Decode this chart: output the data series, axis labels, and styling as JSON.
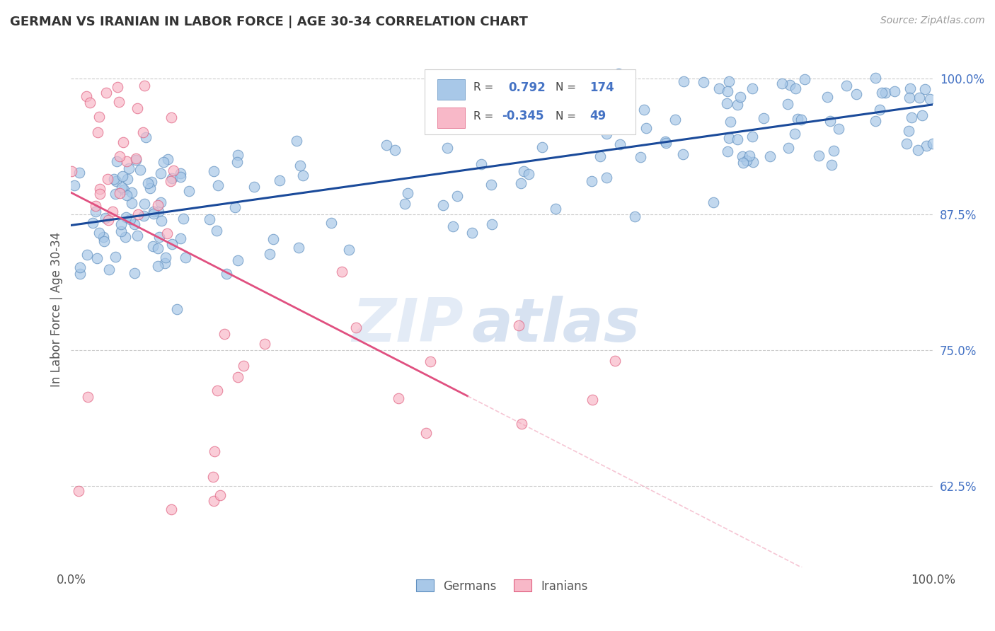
{
  "title": "GERMAN VS IRANIAN IN LABOR FORCE | AGE 30-34 CORRELATION CHART",
  "source": "Source: ZipAtlas.com",
  "ylabel": "In Labor Force | Age 30-34",
  "ytick_labels": [
    "62.5%",
    "75.0%",
    "87.5%",
    "100.0%"
  ],
  "ytick_values": [
    0.625,
    0.75,
    0.875,
    1.0
  ],
  "xrange": [
    0.0,
    1.0
  ],
  "yrange": [
    0.55,
    1.025
  ],
  "blue_color": "#a8c8e8",
  "blue_edge_color": "#6090c0",
  "pink_color": "#f8b8c8",
  "pink_edge_color": "#e06080",
  "blue_line_color": "#1a4a9a",
  "pink_line_solid_color": "#e05080",
  "pink_line_dash_color": "#f0a0b8",
  "blue_R": 0.792,
  "blue_N": 174,
  "pink_R": -0.345,
  "pink_N": 49,
  "watermark_zip": "ZIP",
  "watermark_atlas": "atlas",
  "legend_labels": [
    "Germans",
    "Iranians"
  ],
  "background_color": "#ffffff",
  "grid_color": "#cccccc",
  "title_color": "#333333",
  "axis_label_color": "#555555",
  "legend_value_color": "#4472c4",
  "ytick_color": "#4472c4",
  "xtick_color": "#555555"
}
